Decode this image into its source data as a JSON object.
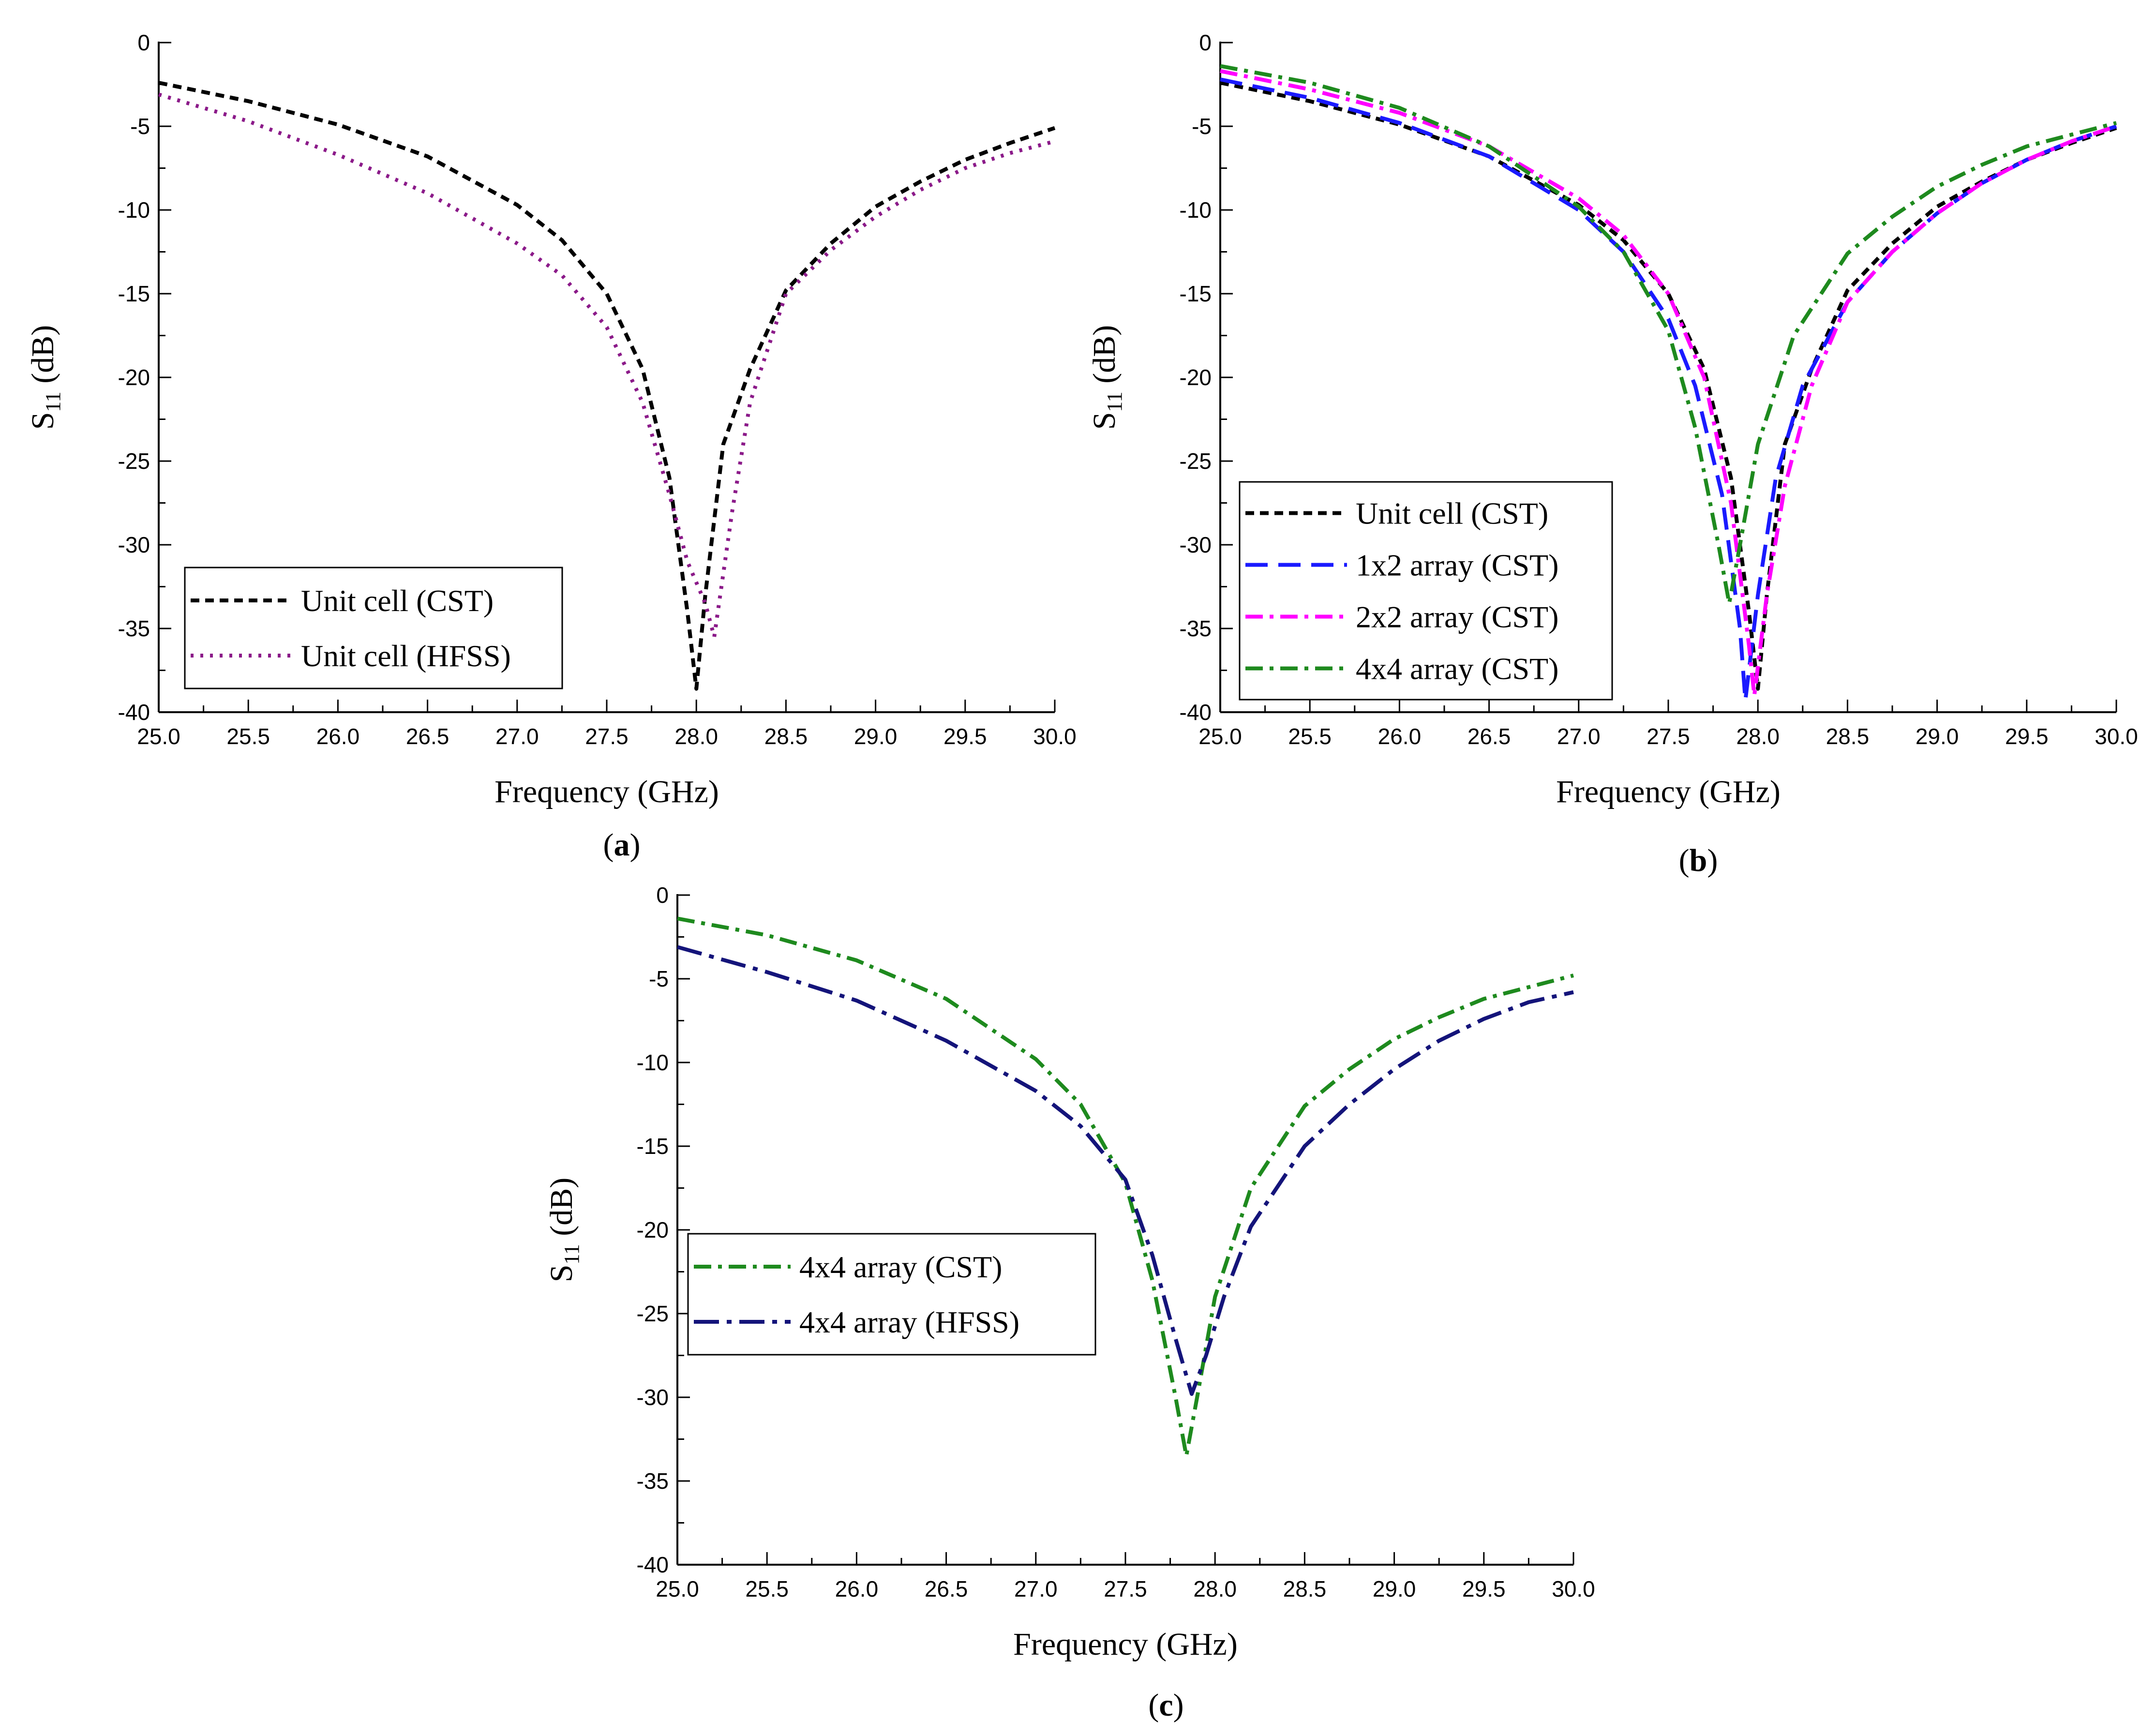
{
  "figure": {
    "panels": [
      {
        "id": "a",
        "prefix": "(",
        "letter": "a",
        "suffix": ")"
      },
      {
        "id": "b",
        "prefix": "(",
        "letter": "b",
        "suffix": ")"
      },
      {
        "id": "c",
        "prefix": "(",
        "letter": "c",
        "suffix": ")"
      }
    ]
  },
  "chart_data": [
    {
      "panel": "a",
      "type": "line",
      "xlabel": "Frequency (GHz)",
      "ylabel_main": "S",
      "ylabel_sub": "11",
      "ylabel_unit": " (dB)",
      "xlim": [
        25.0,
        30.0
      ],
      "ylim": [
        -40,
        0
      ],
      "xticks": [
        25.0,
        25.5,
        26.0,
        26.5,
        27.0,
        27.5,
        28.0,
        28.5,
        29.0,
        29.5,
        30.0
      ],
      "xtick_labels": [
        "25.0",
        "25.5",
        "26.0",
        "26.5",
        "27.0",
        "27.5",
        "28.0",
        "28.5",
        "29.0",
        "29.5",
        "30.0"
      ],
      "yticks": [
        0,
        -5,
        -10,
        -15,
        -20,
        -25,
        -30,
        -35,
        -40
      ],
      "ytick_labels": [
        "0",
        "-5",
        "-10",
        "-15",
        "-20",
        "-25",
        "-30",
        "-35",
        "-40"
      ],
      "legend_position": "bottom-left",
      "series": [
        {
          "name": "Unit cell (CST)",
          "color": "#000000",
          "dash": "dash",
          "x": [
            25.0,
            25.5,
            26.0,
            26.5,
            27.0,
            27.25,
            27.5,
            27.7,
            27.85,
            27.95,
            28.0,
            28.05,
            28.15,
            28.3,
            28.5,
            28.75,
            29.0,
            29.25,
            29.5,
            29.75,
            30.0
          ],
          "y": [
            -2.4,
            -3.5,
            -4.9,
            -6.8,
            -9.7,
            -11.8,
            -15.0,
            -19.5,
            -26.0,
            -34.0,
            -38.6,
            -33.0,
            -24.0,
            -19.5,
            -14.8,
            -12.0,
            -9.8,
            -8.3,
            -7.0,
            -6.0,
            -5.1
          ]
        },
        {
          "name": "Unit cell (HFSS)",
          "color": "#8b1a89",
          "dash": "dot",
          "x": [
            25.0,
            25.5,
            26.0,
            26.5,
            27.0,
            27.25,
            27.5,
            27.7,
            27.85,
            27.95,
            28.05,
            28.1,
            28.2,
            28.3,
            28.5,
            28.75,
            29.0,
            29.25,
            29.5,
            29.75,
            30.0
          ],
          "y": [
            -3.1,
            -4.7,
            -6.7,
            -9.0,
            -12.0,
            -13.9,
            -17.0,
            -21.5,
            -27.0,
            -31.0,
            -33.5,
            -35.5,
            -28.0,
            -21.5,
            -15.0,
            -12.4,
            -10.4,
            -8.8,
            -7.5,
            -6.6,
            -5.9
          ]
        }
      ]
    },
    {
      "panel": "b",
      "type": "line",
      "xlabel": "Frequency (GHz)",
      "ylabel_main": "S",
      "ylabel_sub": "11",
      "ylabel_unit": " (dB)",
      "xlim": [
        25.0,
        30.0
      ],
      "ylim": [
        -40,
        0
      ],
      "xticks": [
        25.0,
        25.5,
        26.0,
        26.5,
        27.0,
        27.5,
        28.0,
        28.5,
        29.0,
        29.5,
        30.0
      ],
      "xtick_labels": [
        "25.0",
        "25.5",
        "26.0",
        "26.5",
        "27.0",
        "27.5",
        "28.0",
        "28.5",
        "29.0",
        "29.5",
        "30.0"
      ],
      "yticks": [
        0,
        -5,
        -10,
        -15,
        -20,
        -25,
        -30,
        -35,
        -40
      ],
      "ytick_labels": [
        "0",
        "-5",
        "-10",
        "-15",
        "-20",
        "-25",
        "-30",
        "-35",
        "-40"
      ],
      "legend_position": "middle-left",
      "series": [
        {
          "name": "Unit cell (CST)",
          "color": "#000000",
          "dash": "dash",
          "x": [
            25.0,
            25.5,
            26.0,
            26.5,
            27.0,
            27.25,
            27.5,
            27.7,
            27.85,
            27.95,
            28.0,
            28.05,
            28.15,
            28.3,
            28.5,
            28.75,
            29.0,
            29.25,
            29.5,
            29.75,
            30.0
          ],
          "y": [
            -2.4,
            -3.5,
            -4.9,
            -6.8,
            -9.7,
            -11.8,
            -15.0,
            -19.5,
            -26.0,
            -34.0,
            -38.6,
            -33.0,
            -24.0,
            -19.5,
            -14.8,
            -12.0,
            -9.8,
            -8.3,
            -7.0,
            -6.0,
            -5.1
          ]
        },
        {
          "name": "1x2 array (CST)",
          "color": "#1a1aff",
          "dash": "longdash",
          "x": [
            25.0,
            25.5,
            26.0,
            26.5,
            27.0,
            27.25,
            27.5,
            27.65,
            27.8,
            27.9,
            27.93,
            28.0,
            28.1,
            28.25,
            28.5,
            28.75,
            29.0,
            29.25,
            29.5,
            29.75,
            30.0
          ],
          "y": [
            -2.2,
            -3.3,
            -4.8,
            -6.8,
            -10.0,
            -12.5,
            -16.5,
            -20.5,
            -27.0,
            -35.0,
            -39.3,
            -33.0,
            -26.0,
            -20.5,
            -15.5,
            -12.5,
            -10.2,
            -8.4,
            -7.0,
            -5.9,
            -5.0
          ]
        },
        {
          "name": "2x2 array (CST)",
          "color": "#ff00ff",
          "dash": "dashdot",
          "x": [
            25.0,
            25.5,
            26.0,
            26.5,
            27.0,
            27.25,
            27.5,
            27.7,
            27.85,
            27.95,
            27.98,
            28.05,
            28.15,
            28.3,
            28.5,
            28.75,
            29.0,
            29.25,
            29.5,
            29.75,
            30.0
          ],
          "y": [
            -1.7,
            -2.8,
            -4.2,
            -6.2,
            -9.3,
            -11.5,
            -15.0,
            -20.0,
            -27.5,
            -36.0,
            -39.0,
            -33.0,
            -26.5,
            -20.5,
            -15.5,
            -12.5,
            -10.2,
            -8.4,
            -7.0,
            -5.9,
            -5.0
          ]
        },
        {
          "name": "4x4 array (CST)",
          "color": "#1e8a1e",
          "dash": "dashdot",
          "x": [
            25.0,
            25.5,
            26.0,
            26.5,
            27.0,
            27.25,
            27.5,
            27.65,
            27.78,
            27.84,
            27.9,
            28.0,
            28.2,
            28.5,
            28.75,
            29.0,
            29.25,
            29.5,
            29.75,
            30.0
          ],
          "y": [
            -1.4,
            -2.4,
            -3.9,
            -6.2,
            -9.8,
            -12.5,
            -17.2,
            -23.0,
            -30.0,
            -33.5,
            -30.0,
            -24.0,
            -17.5,
            -12.6,
            -10.4,
            -8.6,
            -7.3,
            -6.2,
            -5.5,
            -4.8
          ]
        }
      ]
    },
    {
      "panel": "c",
      "type": "line",
      "xlabel": "Frequency (GHz)",
      "ylabel_main": "S",
      "ylabel_sub": "11",
      "ylabel_unit": " (dB)",
      "xlim": [
        25.0,
        30.0
      ],
      "ylim": [
        -40,
        0
      ],
      "xticks": [
        25.0,
        25.5,
        26.0,
        26.5,
        27.0,
        27.5,
        28.0,
        28.5,
        29.0,
        29.5,
        30.0
      ],
      "xtick_labels": [
        "25.0",
        "25.5",
        "26.0",
        "26.5",
        "27.0",
        "27.5",
        "28.0",
        "28.5",
        "29.0",
        "29.5",
        "30.0"
      ],
      "yticks": [
        0,
        -5,
        -10,
        -15,
        -20,
        -25,
        -30,
        -35,
        -40
      ],
      "ytick_labels": [
        "0",
        "-5",
        "-10",
        "-15",
        "-20",
        "-25",
        "-30",
        "-35",
        "-40"
      ],
      "legend_position": "middle-left",
      "series": [
        {
          "name": "4x4 array (CST)",
          "color": "#1e8a1e",
          "dash": "dashdot",
          "x": [
            25.0,
            25.5,
            26.0,
            26.5,
            27.0,
            27.25,
            27.5,
            27.65,
            27.78,
            27.84,
            27.9,
            28.0,
            28.2,
            28.5,
            28.75,
            29.0,
            29.25,
            29.5,
            29.75,
            30.0
          ],
          "y": [
            -1.4,
            -2.4,
            -3.9,
            -6.2,
            -9.8,
            -12.5,
            -17.2,
            -23.0,
            -30.0,
            -33.5,
            -30.0,
            -24.0,
            -17.5,
            -12.6,
            -10.4,
            -8.6,
            -7.3,
            -6.2,
            -5.5,
            -4.8
          ]
        },
        {
          "name": "4x4 array (HFSS)",
          "color": "#14147a",
          "dash": "longdashdot",
          "x": [
            25.0,
            25.5,
            26.0,
            26.5,
            27.0,
            27.25,
            27.5,
            27.65,
            27.78,
            27.87,
            27.95,
            28.05,
            28.2,
            28.5,
            28.75,
            29.0,
            29.25,
            29.5,
            29.75,
            30.0
          ],
          "y": [
            -3.1,
            -4.6,
            -6.3,
            -8.7,
            -11.7,
            -13.8,
            -17.0,
            -21.5,
            -26.5,
            -29.8,
            -27.5,
            -24.0,
            -19.8,
            -15.0,
            -12.5,
            -10.4,
            -8.7,
            -7.4,
            -6.4,
            -5.8
          ]
        }
      ]
    }
  ]
}
